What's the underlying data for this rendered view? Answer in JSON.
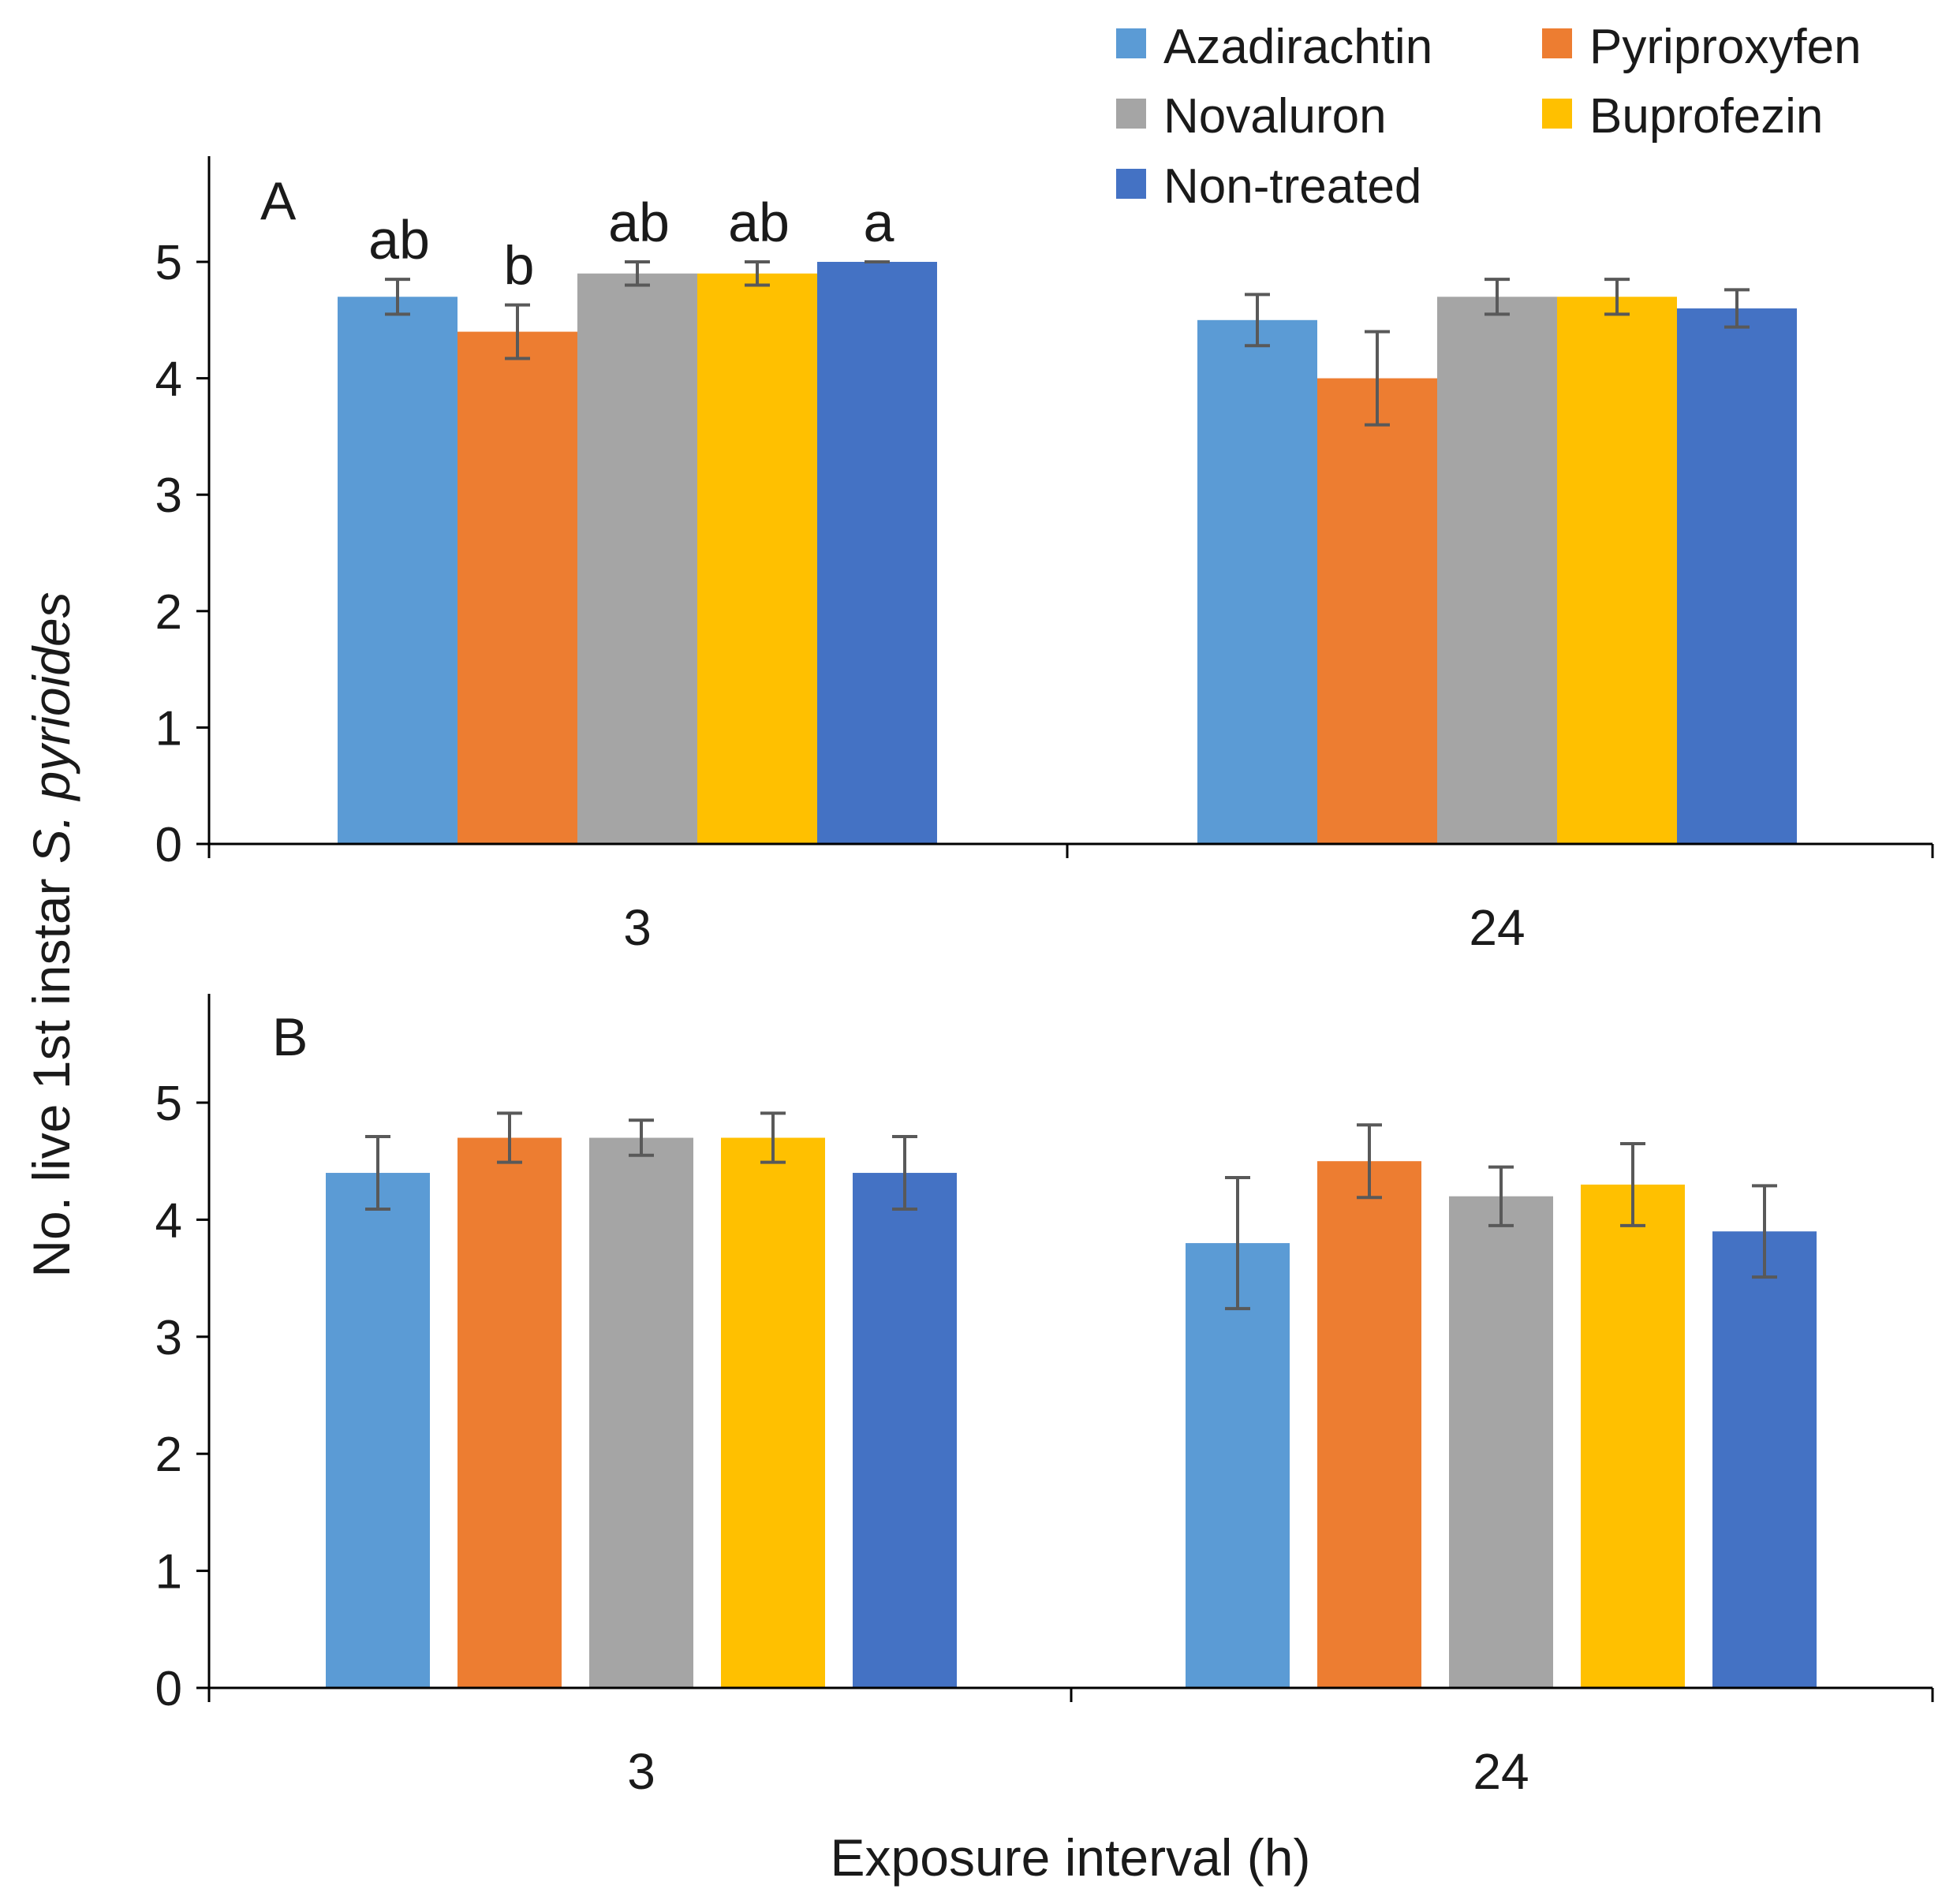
{
  "chart_data": [
    {
      "type": "bar",
      "panel_label": "A",
      "categories": [
        "3",
        "24"
      ],
      "series": [
        {
          "name": "Azadirachtin",
          "color": "#5b9bd5",
          "values": [
            4.7,
            4.5
          ],
          "errors": [
            0.15,
            0.22
          ],
          "letters": [
            "ab",
            ""
          ]
        },
        {
          "name": "Pyriproxyfen",
          "color": "#ed7d31",
          "values": [
            4.4,
            4.0
          ],
          "errors": [
            0.23,
            0.4
          ],
          "letters": [
            "b",
            ""
          ]
        },
        {
          "name": "Novaluron",
          "color": "#a5a5a5",
          "values": [
            4.9,
            4.7
          ],
          "errors": [
            0.1,
            0.15
          ],
          "letters": [
            "ab",
            ""
          ]
        },
        {
          "name": "Buprofezin",
          "color": "#ffc000",
          "values": [
            4.9,
            4.7
          ],
          "errors": [
            0.1,
            0.15
          ],
          "letters": [
            "ab",
            ""
          ]
        },
        {
          "name": "Non-treated",
          "color": "#4472c4",
          "values": [
            5.0,
            4.6
          ],
          "errors": [
            0.0,
            0.16
          ],
          "letters": [
            "a",
            ""
          ]
        }
      ],
      "yticks": [
        "0",
        "1",
        "2",
        "3",
        "4",
        "5"
      ],
      "ylim": [
        0,
        5.9
      ],
      "xlabel": "",
      "grid": false
    },
    {
      "type": "bar",
      "panel_label": "B",
      "categories": [
        "3",
        "24"
      ],
      "series": [
        {
          "name": "Azadirachtin",
          "color": "#5b9bd5",
          "values": [
            4.4,
            3.8
          ],
          "errors": [
            0.31,
            0.56
          ],
          "letters": [
            "",
            ""
          ]
        },
        {
          "name": "Pyriproxyfen",
          "color": "#ed7d31",
          "values": [
            4.7,
            4.5
          ],
          "errors": [
            0.21,
            0.31
          ],
          "letters": [
            "",
            ""
          ]
        },
        {
          "name": "Novaluron",
          "color": "#a5a5a5",
          "values": [
            4.7,
            4.2
          ],
          "errors": [
            0.15,
            0.25
          ],
          "letters": [
            "",
            ""
          ]
        },
        {
          "name": "Buprofezin",
          "color": "#ffc000",
          "values": [
            4.7,
            4.3
          ],
          "errors": [
            0.21,
            0.35
          ],
          "letters": [
            "",
            ""
          ]
        },
        {
          "name": "Non-treated",
          "color": "#4472c4",
          "values": [
            4.4,
            3.9
          ],
          "errors": [
            0.31,
            0.39
          ],
          "letters": [
            "",
            ""
          ]
        }
      ],
      "yticks": [
        "0",
        "1",
        "2",
        "3",
        "4",
        "5"
      ],
      "ylim": [
        0,
        5.9
      ],
      "xlabel": "Exposure interval (h)",
      "grid": false
    }
  ],
  "ylabel_pre": "No. live 1st instar ",
  "ylabel_italic": "S. pyrioides",
  "legend": [
    {
      "name": "Azadirachtin",
      "color": "#5b9bd5"
    },
    {
      "name": "Pyriproxyfen",
      "color": "#ed7d31"
    },
    {
      "name": "Novaluron",
      "color": "#a5a5a5"
    },
    {
      "name": "Buprofezin",
      "color": "#ffc000"
    },
    {
      "name": "Non-treated",
      "color": "#4472c4"
    }
  ]
}
